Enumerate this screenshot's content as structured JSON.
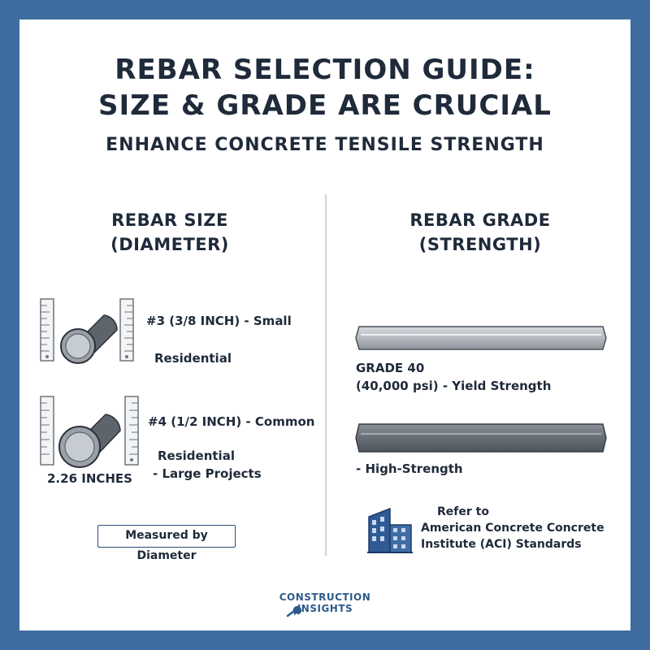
{
  "title_line1": "REBAR SELECTION GUIDE:",
  "title_line2": "SIZE & GRADE ARE CRUCIAL",
  "subtitle": "ENHANCE CONCRETE TENSILE STRENGTH",
  "size_column": {
    "heading_line1": "REBAR SIZE",
    "heading_line2": "(DIAMETER)",
    "item1_line1": "#3 (3/8 INCH) - Small",
    "item1_line2": "Residential",
    "item2_line1": "#4 (1/2 INCH) - Common",
    "item2_line2": "Residential",
    "item2_line3": "- Large Projects",
    "dimension_label": "2.26 INCHES",
    "note": "Measured by Diameter"
  },
  "grade_column": {
    "heading_line1": "REBAR GRADE",
    "heading_line2": "(STRENGTH)",
    "grade1_line1": "GRADE 40",
    "grade1_line2": "(40,000 psi) - Yield Strength",
    "grade2_label": "- High-Strength",
    "ref_line1": "Refer to",
    "ref_line2": "American Concrete Concrete",
    "ref_line3": "Institute (ACI) Standards"
  },
  "footer": {
    "logo_line1": "CONSTRUCTION",
    "logo_line2": "INSIGHTS"
  },
  "colors": {
    "frame": "#3f6da0",
    "text": "#1f2a3a",
    "bar_light": "#b9bec4",
    "bar_dark": "#6b7178",
    "building": "#2f5a96"
  }
}
